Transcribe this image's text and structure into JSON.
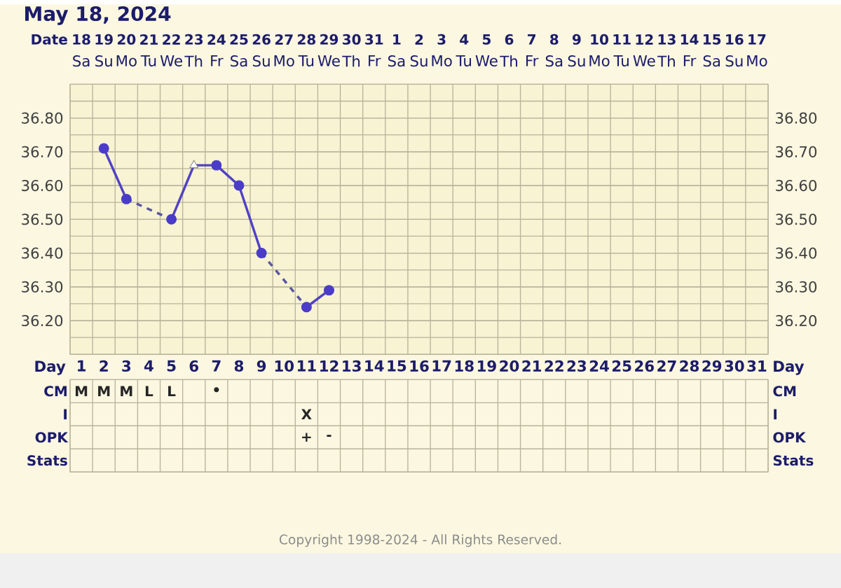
{
  "chart_data": [
    {
      "type": "heatmap",
      "title": "May 18, 2024",
      "categories": [
        "Sa",
        "Su",
        "Mo",
        "Tu",
        "We",
        "Th",
        "Fr",
        "Sa",
        "Su",
        "Mo",
        "Tu",
        "We",
        "Th",
        "Fr",
        "Sa",
        "Su",
        "Mo",
        "Tu",
        "We",
        "Th",
        "Fr",
        "Sa",
        "Su",
        "Mo",
        "Tu",
        "We",
        "Th",
        "Fr",
        "Sa",
        "Su",
        "Mo"
      ],
      "y_categories": [
        "Date"
      ],
      "cells": [
        [
          null,
          null,
          null,
          null,
          null,
          null,
          null,
          null,
          null,
          null,
          null,
          null,
          null,
          null,
          null,
          null,
          null,
          null,
          null,
          null,
          null,
          null,
          null,
          null,
          null,
          null,
          null,
          null,
          null,
          null,
          null
        ]
      ],
      "cell_labels": [
        [
          "18",
          "19",
          "20",
          "21",
          "22",
          "23",
          "24",
          "25",
          "26",
          "27",
          "28",
          "29",
          "30",
          "31",
          "1",
          "2",
          "3",
          "4",
          "5",
          "6",
          "7",
          "8",
          "9",
          "10",
          "11",
          "12",
          "13",
          "14",
          "15",
          "16",
          "17"
        ]
      ]
    },
    {
      "type": "line",
      "xlabel": "Day",
      "categories": [
        "1",
        "2",
        "3",
        "4",
        "5",
        "6",
        "7",
        "8",
        "9",
        "10",
        "11",
        "12",
        "13",
        "14",
        "15",
        "16",
        "17",
        "18",
        "19",
        "20",
        "21",
        "22",
        "23",
        "24",
        "25",
        "26",
        "27",
        "28",
        "29",
        "30",
        "31"
      ],
      "series": [
        {
          "type": "line",
          "color": "#5142c4",
          "line_style": "solid",
          "marker": "none",
          "values": [
            null,
            36.71,
            36.56,
            null,
            null,
            null,
            null,
            null,
            null,
            null,
            null,
            null,
            null,
            null,
            null,
            null,
            null,
            null,
            null,
            null,
            null,
            null,
            null,
            null,
            null,
            null,
            null,
            null,
            null,
            null,
            null
          ]
        },
        {
          "type": "line",
          "color": "#5a55a0",
          "line_style": "dashed",
          "marker": "none",
          "values": [
            null,
            null,
            36.56,
            null,
            36.5,
            null,
            null,
            null,
            null,
            null,
            null,
            null,
            null,
            null,
            null,
            null,
            null,
            null,
            null,
            null,
            null,
            null,
            null,
            null,
            null,
            null,
            null,
            null,
            null,
            null,
            null
          ]
        },
        {
          "type": "line",
          "color": "#5142c4",
          "line_style": "solid",
          "marker": "none",
          "values": [
            null,
            null,
            null,
            null,
            36.5,
            36.66,
            36.66,
            36.6,
            36.4,
            null,
            null,
            null,
            null,
            null,
            null,
            null,
            null,
            null,
            null,
            null,
            null,
            null,
            null,
            null,
            null,
            null,
            null,
            null,
            null,
            null,
            null
          ]
        },
        {
          "type": "line",
          "color": "#5a55a0",
          "line_style": "dashed",
          "marker": "none",
          "values": [
            null,
            null,
            null,
            null,
            null,
            null,
            null,
            null,
            36.4,
            null,
            36.24,
            null,
            null,
            null,
            null,
            null,
            null,
            null,
            null,
            null,
            null,
            null,
            null,
            null,
            null,
            null,
            null,
            null,
            null,
            null,
            null
          ]
        },
        {
          "type": "line",
          "color": "#5142c4",
          "line_style": "solid",
          "marker": "none",
          "values": [
            null,
            null,
            null,
            null,
            null,
            null,
            null,
            null,
            null,
            null,
            36.24,
            36.29,
            null,
            null,
            null,
            null,
            null,
            null,
            null,
            null,
            null,
            null,
            null,
            null,
            null,
            null,
            null,
            null,
            null,
            null,
            null
          ]
        },
        {
          "type": "scatter",
          "color": "#4a3cc8",
          "marker": "circle",
          "values": [
            null,
            36.71,
            36.56,
            null,
            36.5,
            null,
            36.66,
            36.6,
            36.4,
            null,
            36.24,
            36.29,
            null,
            null,
            null,
            null,
            null,
            null,
            null,
            null,
            null,
            null,
            null,
            null,
            null,
            null,
            null,
            null,
            null,
            null,
            null
          ]
        },
        {
          "type": "scatter",
          "color": "#ffffff",
          "marker": "triangle",
          "values": [
            null,
            null,
            null,
            null,
            null,
            36.66,
            null,
            null,
            null,
            null,
            null,
            null,
            null,
            null,
            null,
            null,
            null,
            null,
            null,
            null,
            null,
            null,
            null,
            null,
            null,
            null,
            null,
            null,
            null,
            null,
            null
          ]
        }
      ],
      "ylim": [
        36.1,
        36.9
      ],
      "yticks": [
        {
          "value": 36.2,
          "label": "36.20"
        },
        {
          "value": 36.3,
          "label": "36.30"
        },
        {
          "value": 36.4,
          "label": "36.40"
        },
        {
          "value": 36.5,
          "label": "36.50"
        },
        {
          "value": 36.6,
          "label": "36.60"
        },
        {
          "value": 36.7,
          "label": "36.70"
        },
        {
          "value": 36.8,
          "label": "36.80"
        }
      ],
      "y2lim": [
        36.1,
        36.9
      ],
      "y2ticks": [
        {
          "value": 36.2,
          "label": "36.20"
        },
        {
          "value": 36.3,
          "label": "36.30"
        },
        {
          "value": 36.4,
          "label": "36.40"
        },
        {
          "value": 36.5,
          "label": "36.50"
        },
        {
          "value": 36.6,
          "label": "36.60"
        },
        {
          "value": 36.7,
          "label": "36.70"
        },
        {
          "value": 36.8,
          "label": "36.80"
        }
      ],
      "grid": true
    },
    {
      "type": "heatmap",
      "categories": [
        "1",
        "2",
        "3",
        "4",
        "5",
        "6",
        "7",
        "8",
        "9",
        "10",
        "11",
        "12",
        "13",
        "14",
        "15",
        "16",
        "17",
        "18",
        "19",
        "20",
        "21",
        "22",
        "23",
        "24",
        "25",
        "26",
        "27",
        "28",
        "29",
        "30",
        "31"
      ],
      "y_categories": [
        "CM",
        "I",
        "OPK",
        "Stats"
      ],
      "y2_categories": [
        "CM",
        "I",
        "OPK",
        "Stats"
      ],
      "tick_labels": "y",
      "grid": true,
      "cells": [
        [
          null,
          null,
          null,
          null,
          null,
          null,
          null,
          null,
          null,
          null,
          null,
          null,
          null,
          null,
          null,
          null,
          null,
          null,
          null,
          null,
          null,
          null,
          null,
          null,
          null,
          null,
          null,
          null,
          null,
          null,
          null
        ],
        [
          null,
          null,
          null,
          null,
          null,
          null,
          null,
          null,
          null,
          null,
          null,
          null,
          null,
          null,
          null,
          null,
          null,
          null,
          null,
          null,
          null,
          null,
          null,
          null,
          null,
          null,
          null,
          null,
          null,
          null,
          null
        ],
        [
          null,
          null,
          null,
          null,
          null,
          null,
          null,
          null,
          null,
          null,
          null,
          null,
          null,
          null,
          null,
          null,
          null,
          null,
          null,
          null,
          null,
          null,
          null,
          null,
          null,
          null,
          null,
          null,
          null,
          null,
          null
        ],
        [
          null,
          null,
          null,
          null,
          null,
          null,
          null,
          null,
          null,
          null,
          null,
          null,
          null,
          null,
          null,
          null,
          null,
          null,
          null,
          null,
          null,
          null,
          null,
          null,
          null,
          null,
          null,
          null,
          null,
          null,
          null
        ]
      ],
      "cell_labels": [
        [
          "M",
          "M",
          "M",
          "L",
          "L",
          null,
          "•",
          null,
          null,
          null,
          null,
          null,
          null,
          null,
          null,
          null,
          null,
          null,
          null,
          null,
          null,
          null,
          null,
          null,
          null,
          null,
          null,
          null,
          null,
          null,
          null
        ],
        [
          null,
          null,
          null,
          null,
          null,
          null,
          null,
          null,
          null,
          null,
          "X",
          null,
          null,
          null,
          null,
          null,
          null,
          null,
          null,
          null,
          null,
          null,
          null,
          null,
          null,
          null,
          null,
          null,
          null,
          null,
          null
        ],
        [
          null,
          null,
          null,
          null,
          null,
          null,
          null,
          null,
          null,
          null,
          "+",
          "-",
          null,
          null,
          null,
          null,
          null,
          null,
          null,
          null,
          null,
          null,
          null,
          null,
          null,
          null,
          null,
          null,
          null,
          null,
          null
        ],
        [
          null,
          null,
          null,
          null,
          null,
          null,
          null,
          null,
          null,
          null,
          null,
          null,
          null,
          null,
          null,
          null,
          null,
          null,
          null,
          null,
          null,
          null,
          null,
          null,
          null,
          null,
          null,
          null,
          null,
          null,
          null
        ]
      ],
      "annotations": [
        "Copyright 1998-2024 - All Rights Reserved."
      ]
    }
  ]
}
